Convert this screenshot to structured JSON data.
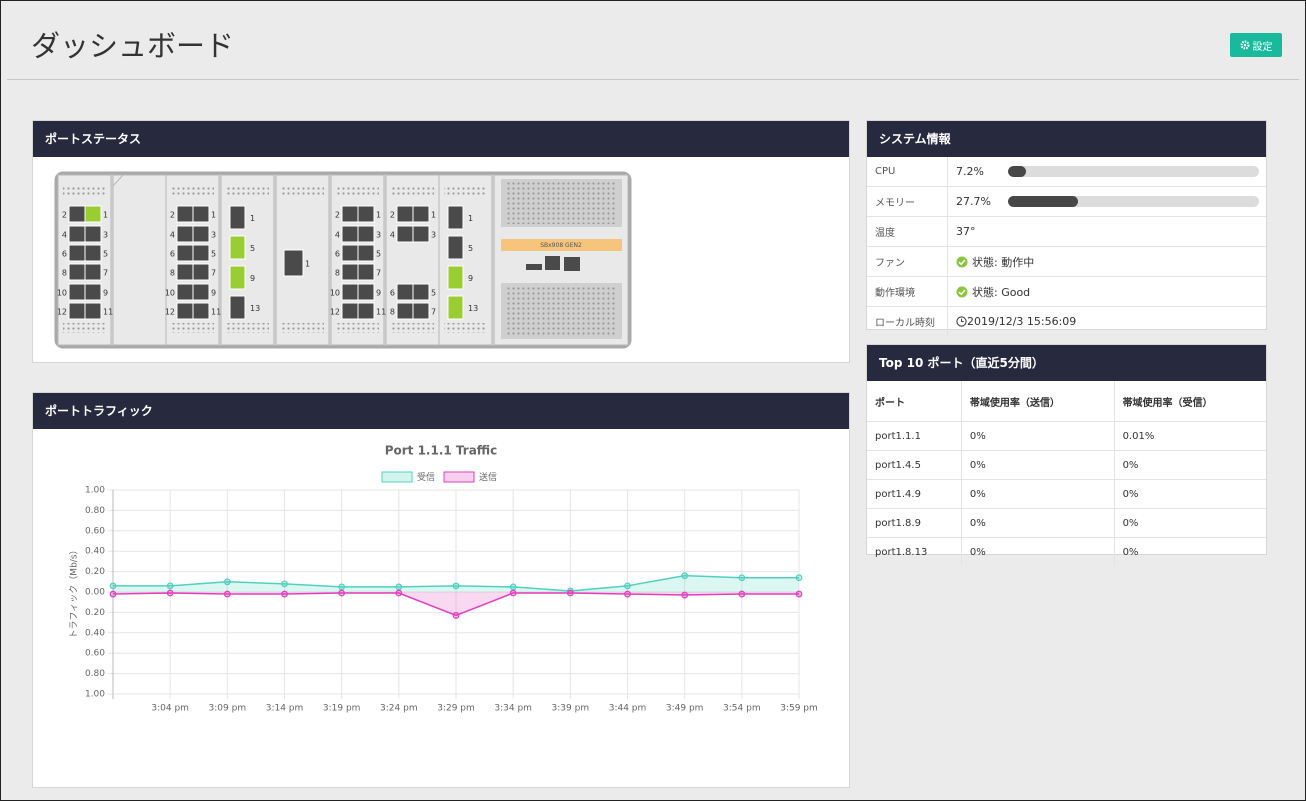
{
  "header": {
    "title": "ダッシュボード",
    "settings_button": "設定"
  },
  "port_status": {
    "title": "ポートステータス",
    "controller_label": "SBx908 GEN2",
    "modules": [
      {
        "type": "copper12",
        "ports": [
          {
            "label": "2"
          },
          {
            "label": "1",
            "up": true
          },
          {
            "label": "4"
          },
          {
            "label": "3"
          },
          {
            "label": "6"
          },
          {
            "label": "5"
          },
          {
            "label": "8"
          },
          {
            "label": "7"
          },
          {
            "label": "10"
          },
          {
            "label": "9"
          },
          {
            "label": "12"
          },
          {
            "label": "11"
          }
        ]
      },
      {
        "type": "blank"
      },
      {
        "type": "copper12",
        "ports": [
          {
            "label": "2"
          },
          {
            "label": "1"
          },
          {
            "label": "4"
          },
          {
            "label": "3"
          },
          {
            "label": "6"
          },
          {
            "label": "5"
          },
          {
            "label": "8"
          },
          {
            "label": "7"
          },
          {
            "label": "10"
          },
          {
            "label": "9"
          },
          {
            "label": "12"
          },
          {
            "label": "11"
          }
        ]
      },
      {
        "type": "sfp4",
        "ports": [
          {
            "label": "1"
          },
          {
            "label": "5",
            "up": true
          },
          {
            "label": "9",
            "up": true
          },
          {
            "label": "13"
          }
        ]
      },
      {
        "type": "single",
        "ports": [
          {
            "label": "1"
          }
        ]
      },
      {
        "type": "copper12",
        "ports": [
          {
            "label": "2"
          },
          {
            "label": "1"
          },
          {
            "label": "4"
          },
          {
            "label": "3"
          },
          {
            "label": "6"
          },
          {
            "label": "5"
          },
          {
            "label": "8"
          },
          {
            "label": "7"
          },
          {
            "label": "10"
          },
          {
            "label": "9"
          },
          {
            "label": "12"
          },
          {
            "label": "11"
          }
        ]
      },
      {
        "type": "copper4",
        "ports": [
          {
            "label": "2"
          },
          {
            "label": "1"
          },
          {
            "label": "4"
          },
          {
            "label": "3"
          },
          {
            "label": "6"
          },
          {
            "label": "5"
          },
          {
            "label": "8"
          },
          {
            "label": "7"
          }
        ]
      },
      {
        "type": "sfp4",
        "ports": [
          {
            "label": "1"
          },
          {
            "label": "5"
          },
          {
            "label": "9",
            "up": true
          },
          {
            "label": "13",
            "up": true
          }
        ]
      }
    ]
  },
  "system_info": {
    "title": "システム情報",
    "rows": [
      {
        "label": "CPU",
        "value": 7.2,
        "value_label": "7.2%"
      },
      {
        "label": "メモリー",
        "value": 27.7,
        "value_label": "27.7%"
      },
      {
        "label": "温度",
        "text": "37°"
      },
      {
        "label": "ファン",
        "status": "状態: 動作中"
      },
      {
        "label": "動作環境",
        "status": "状態: Good"
      },
      {
        "label": "ローカル時刻",
        "time": "2019/12/3 15:56:09"
      }
    ]
  },
  "top10": {
    "title": "Top 10 ポート（直近5分間）",
    "columns": [
      "ポート",
      "帯域使用率（送信）",
      "帯域使用率（受信）"
    ],
    "rows": [
      [
        "port1.1.1",
        "0%",
        "0.01%"
      ],
      [
        "port1.4.5",
        "0%",
        "0%"
      ],
      [
        "port1.4.9",
        "0%",
        "0%"
      ],
      [
        "port1.8.9",
        "0%",
        "0%"
      ],
      [
        "port1.8.13",
        "0%",
        "0%"
      ]
    ]
  },
  "traffic_panel_title": "ポートトラフィック",
  "chart_data": {
    "type": "line",
    "title": "Port 1.1.1 Traffic",
    "y_label": "トラフィック（Mb/s）",
    "categories": [
      null,
      "3:04 pm",
      "3:09 pm",
      "3:14 pm",
      "3:19 pm",
      "3:24 pm",
      "3:29 pm",
      "3:34 pm",
      "3:39 pm",
      "3:44 pm",
      "3:49 pm",
      "3:54 pm",
      "3:59 pm"
    ],
    "series": [
      {
        "name": "受信",
        "color": "#4fd1bf",
        "values": [
          0.06,
          0.06,
          0.1,
          0.08,
          0.05,
          0.05,
          0.06,
          0.05,
          0.01,
          0.06,
          0.16,
          0.14,
          0.14
        ]
      },
      {
        "name": "送信",
        "color": "#e23fbd",
        "values": [
          -0.02,
          -0.01,
          -0.02,
          -0.02,
          -0.01,
          -0.01,
          -0.23,
          -0.01,
          -0.01,
          -0.02,
          -0.03,
          -0.02,
          -0.02
        ]
      }
    ],
    "ylim": [
      -1,
      1
    ],
    "yticks": [
      {
        "value": 1,
        "label": "1.00"
      },
      {
        "value": 0.8,
        "label": "0.80"
      },
      {
        "value": 0.6,
        "label": "0.60"
      },
      {
        "value": 0.4,
        "label": "0.40"
      },
      {
        "value": 0.2,
        "label": "0.20"
      },
      {
        "value": 0,
        "label": "0.00"
      },
      {
        "value": -0.2,
        "label": "0.20"
      },
      {
        "value": -0.4,
        "label": "0.40"
      },
      {
        "value": -0.6,
        "label": "0.60"
      },
      {
        "value": -0.8,
        "label": "0.80"
      },
      {
        "value": -1,
        "label": "1.00"
      }
    ],
    "grid": true
  }
}
